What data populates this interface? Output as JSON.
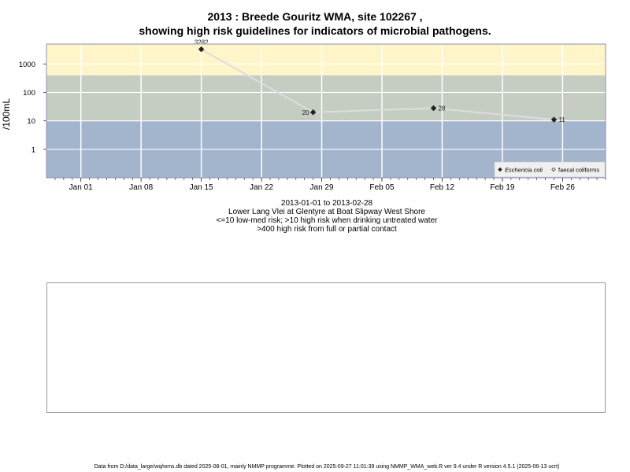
{
  "chart_data": {
    "type": "line",
    "title": "2013 : Breede Gouritz WMA, site 102267 ,",
    "subtitle": "showing high risk guidelines for indicators of microbial pathogens.",
    "ylabel": "/100mL",
    "xlabel": "",
    "yscale": "log",
    "ylim": [
      0.1,
      5000
    ],
    "xlim": [
      "2012-12-28",
      "2013-03-03"
    ],
    "x_ticks": [
      {
        "date": "2013-01-01",
        "label": "Jan 01"
      },
      {
        "date": "2013-01-08",
        "label": "Jan 08"
      },
      {
        "date": "2013-01-15",
        "label": "Jan 15"
      },
      {
        "date": "2013-01-22",
        "label": "Jan 22"
      },
      {
        "date": "2013-01-29",
        "label": "Jan 29"
      },
      {
        "date": "2013-02-05",
        "label": "Feb 05"
      },
      {
        "date": "2013-02-12",
        "label": "Feb 12"
      },
      {
        "date": "2013-02-19",
        "label": "Feb 19"
      },
      {
        "date": "2013-02-26",
        "label": "Feb 26"
      }
    ],
    "y_ticks": [
      {
        "value": 1,
        "label": "1"
      },
      {
        "value": 10,
        "label": "10"
      },
      {
        "value": 100,
        "label": "100"
      },
      {
        "value": 1000,
        "label": "1000"
      }
    ],
    "bands": [
      {
        "from": 0.1,
        "to": 10,
        "color": "#a3b4cd"
      },
      {
        "from": 10,
        "to": 400,
        "color": "#c5cdc2"
      },
      {
        "from": 400,
        "to": 5000,
        "color": "#fff5c8"
      }
    ],
    "grid": true,
    "series": [
      {
        "name": "Eschericia coli",
        "marker": "diamond",
        "color": "#222222",
        "line_color": "#dddddd",
        "points": [
          {
            "x": "2013-01-15",
            "y": 3282,
            "label": "3282",
            "label_pos": "above"
          },
          {
            "x": "2013-01-28",
            "y": 20,
            "label": "20",
            "label_pos": "left"
          },
          {
            "x": "2013-02-11",
            "y": 28,
            "label": "28",
            "label_pos": "right"
          },
          {
            "x": "2013-02-25",
            "y": 11,
            "label": "11",
            "label_pos": "right"
          }
        ]
      },
      {
        "name": "faecal coliforms",
        "marker": "open-diamond",
        "color": "#222222",
        "points": []
      }
    ],
    "legend_placement": "bottom-right"
  },
  "subtitle_lines": [
    "2013-01-01 to 2013-02-28",
    "Lower Lang Vlei at Glentyre at Boat Slipway West Shore",
    "<=10 low-med risk; >10 high risk when drinking untreated water",
    ">400 high risk from full or partial contact"
  ],
  "footer": "Data from D:/data_large/wq/wms.db dated 2025-08-01, mainly NMMP programme. Plotted on 2025-09-27 11:01:39 using NMMP_WMA_web.R ver 9.4 under R version 4.5.1 (2025-06-13 ucrt)"
}
